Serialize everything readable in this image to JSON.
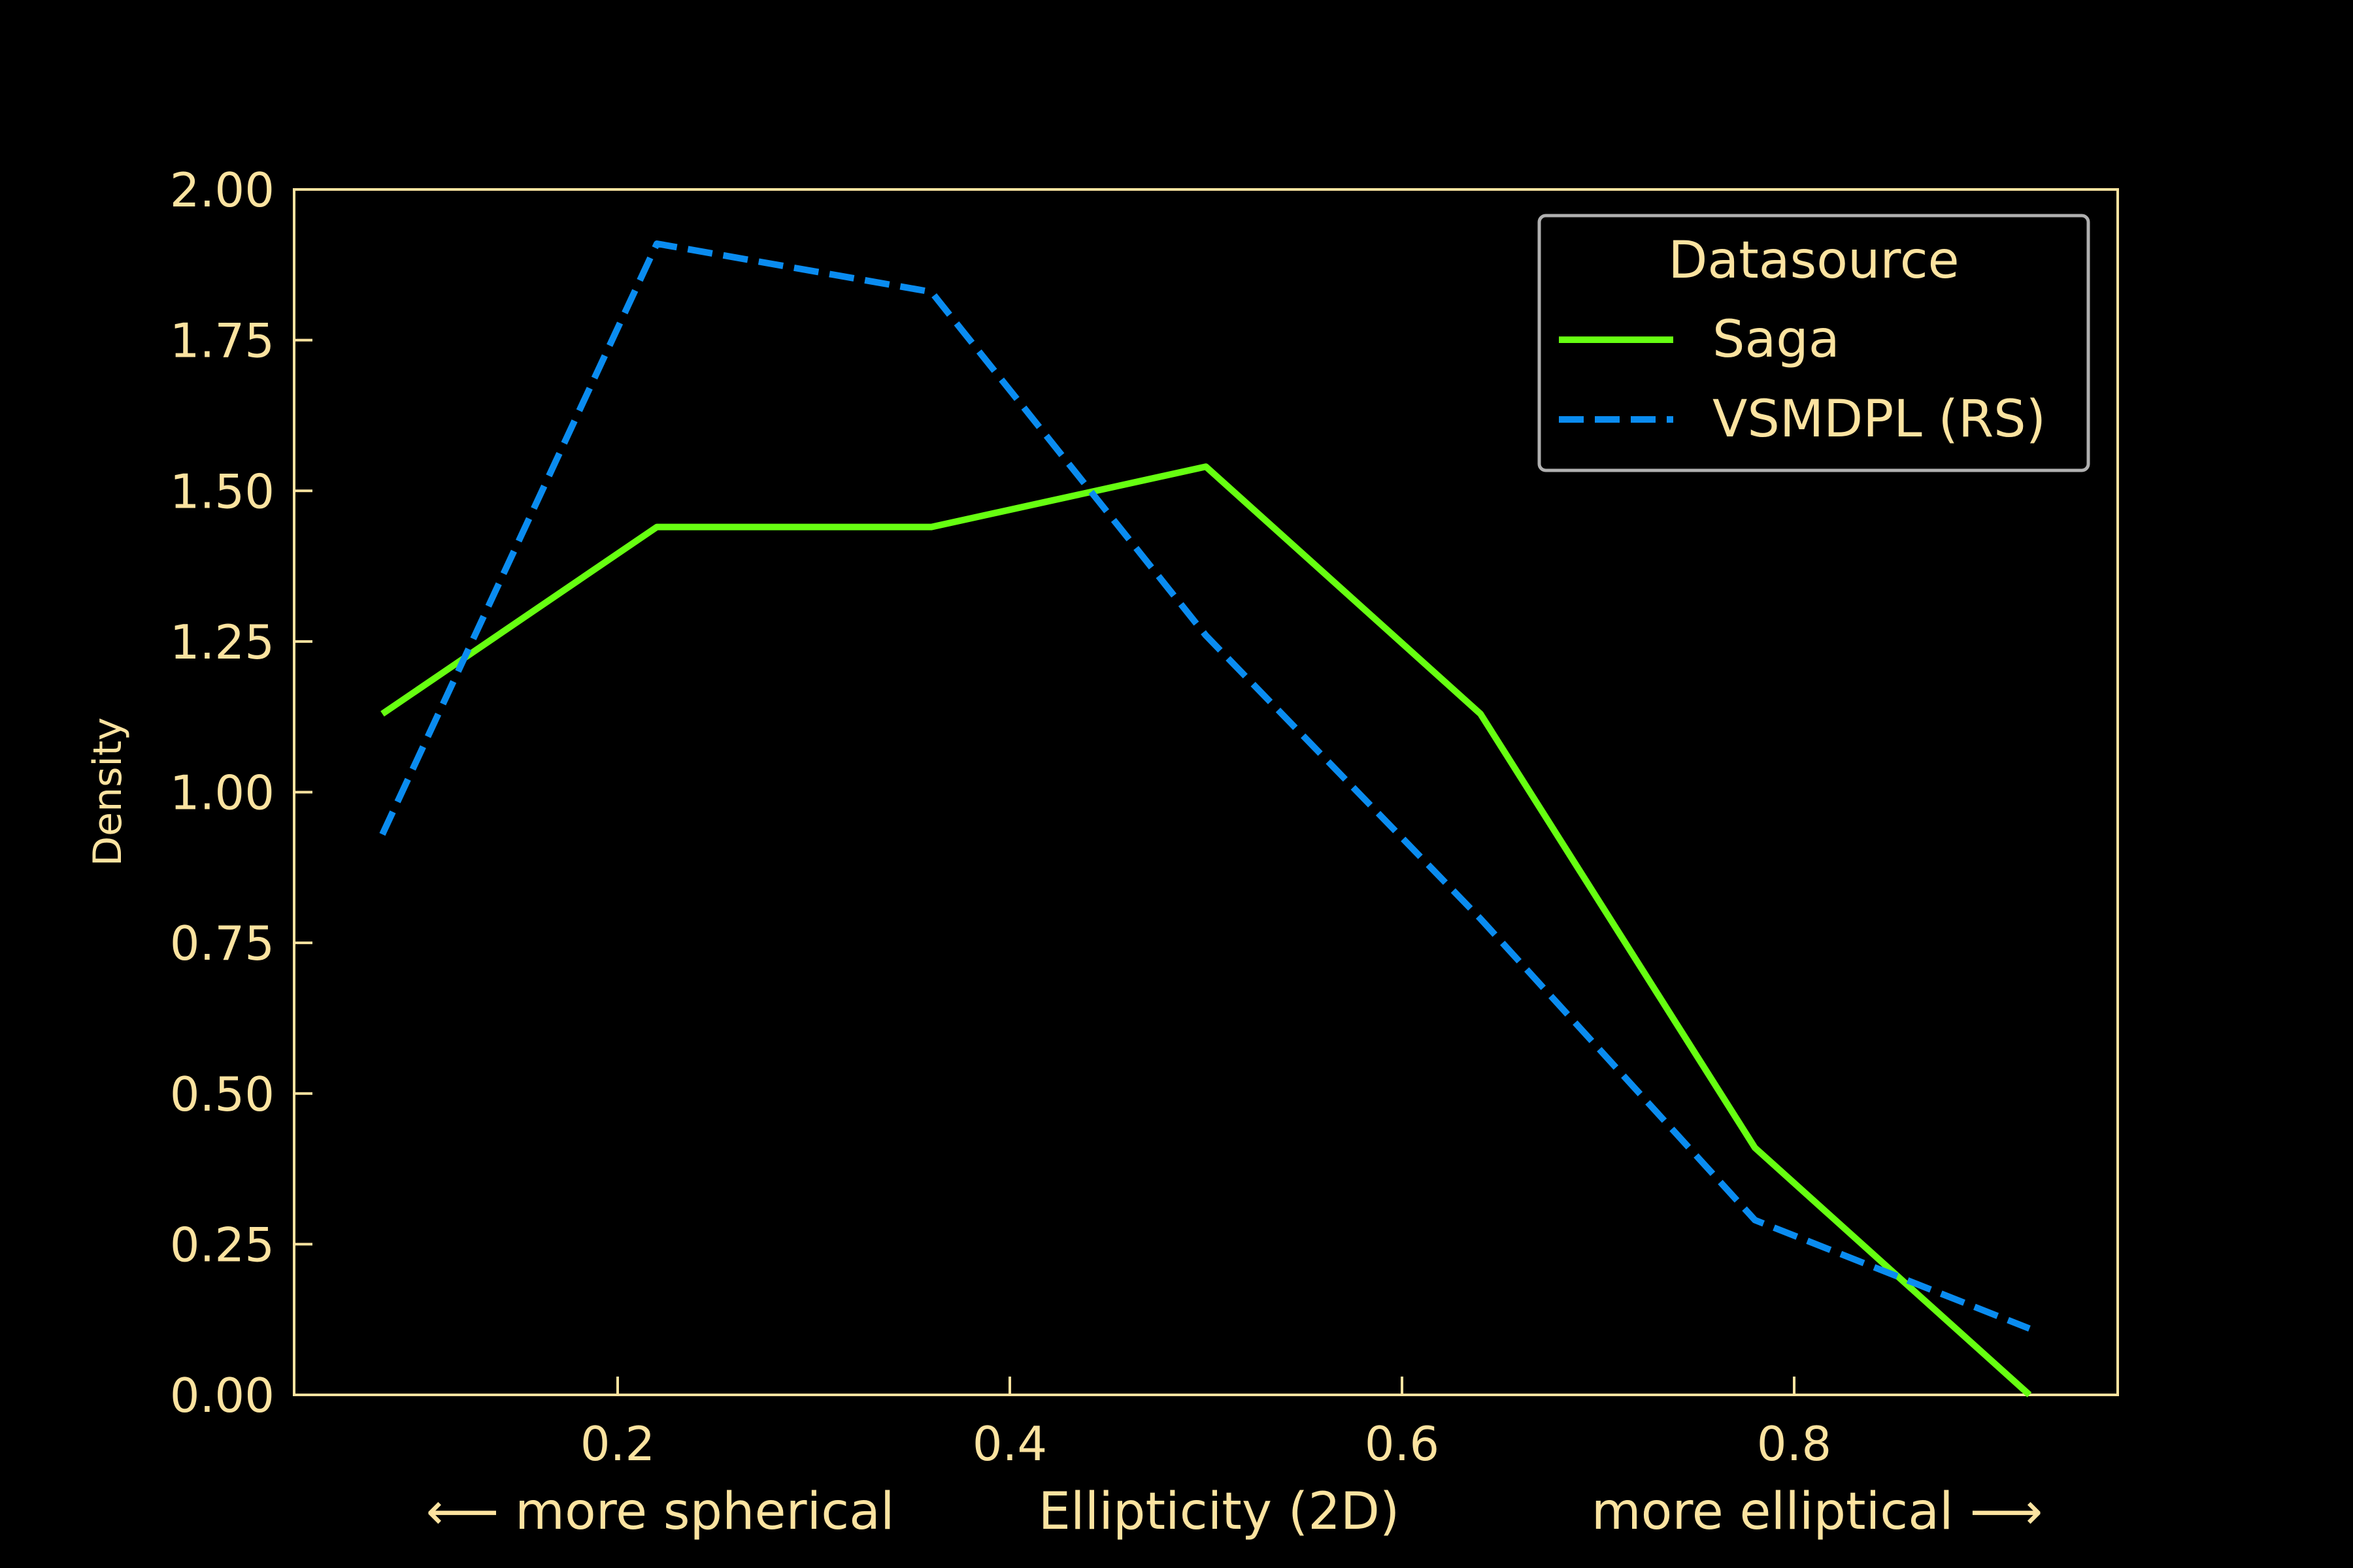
{
  "colors": {
    "background": "#000000",
    "foreground": "#fce3a0",
    "saga": "#66ff11",
    "vsmdpl": "#0a8cf0",
    "legend_border": "#b0b0b0"
  },
  "chart_data": {
    "type": "line",
    "title": "",
    "xlabel": "Ellipticity (2D)",
    "xlabel_left": "⟵  more spherical",
    "xlabel_right": "more elliptical  ⟶",
    "ylabel": "Density",
    "xlim": [
      0.035,
      0.965
    ],
    "ylim": [
      0,
      2
    ],
    "xticks": [
      {
        "value": 0.2,
        "label": "0.2"
      },
      {
        "value": 0.4,
        "label": "0.4"
      },
      {
        "value": 0.6,
        "label": "0.6"
      },
      {
        "value": 0.8,
        "label": "0.8"
      }
    ],
    "yticks": [
      {
        "value": 0.0,
        "label": "0.00"
      },
      {
        "value": 0.25,
        "label": "0.25"
      },
      {
        "value": 0.5,
        "label": "0.50"
      },
      {
        "value": 0.75,
        "label": "0.75"
      },
      {
        "value": 1.0,
        "label": "1.00"
      },
      {
        "value": 1.25,
        "label": "1.25"
      },
      {
        "value": 1.5,
        "label": "1.50"
      },
      {
        "value": 1.75,
        "label": "1.75"
      },
      {
        "value": 2.0,
        "label": "2.00"
      }
    ],
    "grid": false,
    "legend": {
      "title": "Datasource",
      "placement": "top-right"
    },
    "series": [
      {
        "name": "Saga",
        "style": "solid",
        "x": [
          0.08,
          0.22,
          0.36,
          0.5,
          0.64,
          0.78,
          0.92
        ],
        "y": [
          1.13,
          1.44,
          1.44,
          1.54,
          1.13,
          0.41,
          0.0
        ]
      },
      {
        "name": "VSMDPL (RS)",
        "style": "dashed",
        "x": [
          0.08,
          0.22,
          0.36,
          0.5,
          0.64,
          0.78,
          0.92
        ],
        "y": [
          0.93,
          1.91,
          1.83,
          1.26,
          0.79,
          0.29,
          0.11
        ]
      }
    ]
  }
}
